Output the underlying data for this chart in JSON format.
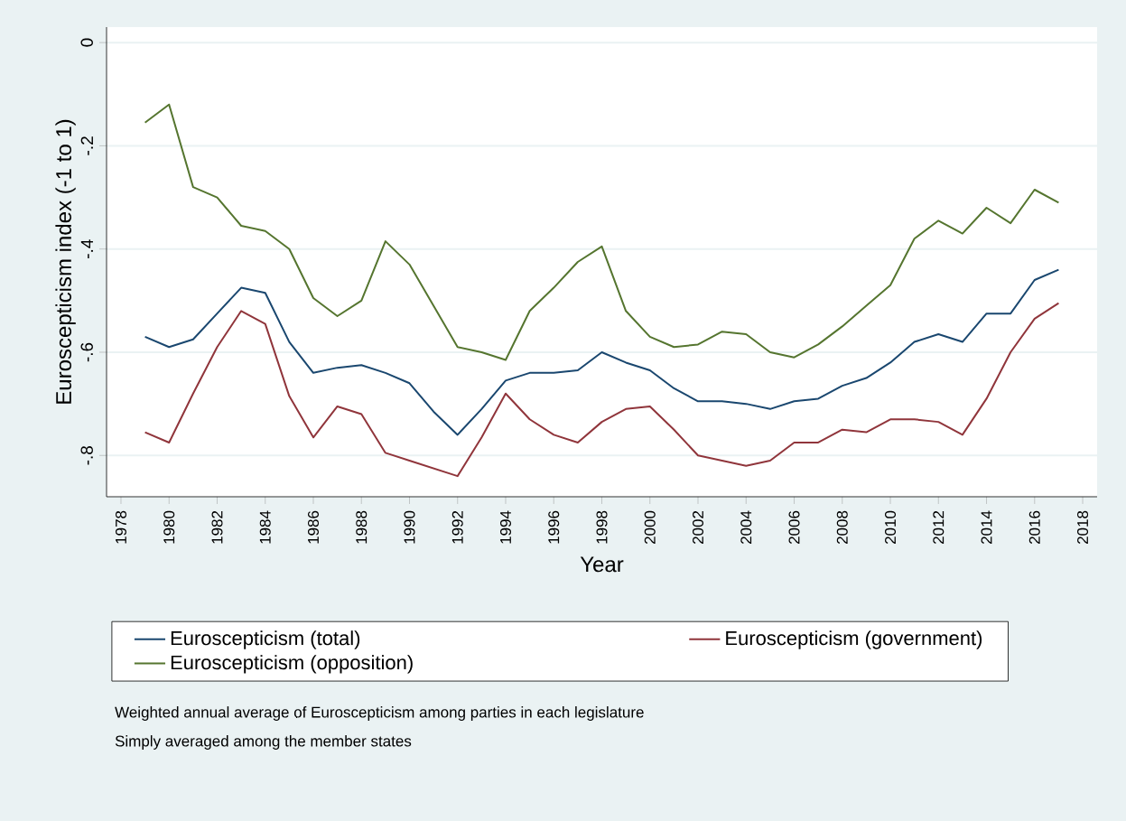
{
  "chart_data": {
    "type": "line",
    "xlabel": "Year",
    "ylabel": "Euroscepticism index (-1 to 1)",
    "x": [
      1979,
      1980,
      1981,
      1982,
      1983,
      1984,
      1985,
      1986,
      1987,
      1988,
      1989,
      1990,
      1991,
      1992,
      1993,
      1994,
      1995,
      1996,
      1997,
      1998,
      1999,
      2000,
      2001,
      2002,
      2003,
      2004,
      2005,
      2006,
      2007,
      2008,
      2009,
      2010,
      2011,
      2012,
      2013,
      2014,
      2015,
      2016,
      2017
    ],
    "series": [
      {
        "name": "Euroscepticism (total)",
        "color": "#1a476f",
        "values": [
          -0.57,
          -0.59,
          -0.575,
          -0.525,
          -0.475,
          -0.485,
          -0.58,
          -0.64,
          -0.63,
          -0.625,
          -0.64,
          -0.66,
          -0.715,
          -0.76,
          -0.71,
          -0.655,
          -0.64,
          -0.64,
          -0.635,
          -0.6,
          -0.62,
          -0.635,
          -0.67,
          -0.695,
          -0.695,
          -0.7,
          -0.71,
          -0.695,
          -0.69,
          -0.665,
          -0.65,
          -0.62,
          -0.58,
          -0.565,
          -0.58,
          -0.525,
          -0.525,
          -0.46,
          -0.44
        ]
      },
      {
        "name": "Euroscepticism (government)",
        "color": "#90353b",
        "values": [
          -0.755,
          -0.775,
          -0.68,
          -0.59,
          -0.52,
          -0.545,
          -0.685,
          -0.765,
          -0.705,
          -0.72,
          -0.795,
          -0.81,
          -0.825,
          -0.84,
          -0.765,
          -0.68,
          -0.73,
          -0.76,
          -0.775,
          -0.735,
          -0.71,
          -0.705,
          -0.75,
          -0.8,
          -0.81,
          -0.82,
          -0.81,
          -0.775,
          -0.775,
          -0.75,
          -0.755,
          -0.73,
          -0.73,
          -0.735,
          -0.76,
          -0.69,
          -0.6,
          -0.535,
          -0.505
        ]
      },
      {
        "name": "Euroscepticism (opposition)",
        "color": "#55752f",
        "values": [
          -0.155,
          -0.12,
          -0.28,
          -0.3,
          -0.355,
          -0.365,
          -0.4,
          -0.495,
          -0.53,
          -0.5,
          -0.385,
          -0.43,
          -0.51,
          -0.59,
          -0.6,
          -0.615,
          -0.52,
          -0.475,
          -0.425,
          -0.395,
          -0.52,
          -0.57,
          -0.59,
          -0.585,
          -0.56,
          -0.565,
          -0.6,
          -0.61,
          -0.585,
          -0.55,
          -0.51,
          -0.47,
          -0.38,
          -0.345,
          -0.37,
          -0.32,
          -0.35,
          -0.285,
          -0.31
        ]
      }
    ],
    "xlim": [
      1977.4,
      2018.6
    ],
    "ylim": [
      -0.88,
      0.03
    ],
    "xticks": [
      1978,
      1980,
      1982,
      1984,
      1986,
      1988,
      1990,
      1992,
      1994,
      1996,
      1998,
      2000,
      2002,
      2004,
      2006,
      2008,
      2010,
      2012,
      2014,
      2016,
      2018
    ],
    "yticks": [
      {
        "value": -0.8,
        "label": "-.8"
      },
      {
        "value": -0.6,
        "label": "-.6"
      },
      {
        "value": -0.4,
        "label": "-.4"
      },
      {
        "value": -0.2,
        "label": "-.2"
      },
      0
    ],
    "grid": "y",
    "legend": "bottom",
    "line_style": "solid",
    "annotations": [
      "Weighted annual average of Euroscepticism among parties in each legislature",
      "Simply averaged among the member states"
    ]
  }
}
